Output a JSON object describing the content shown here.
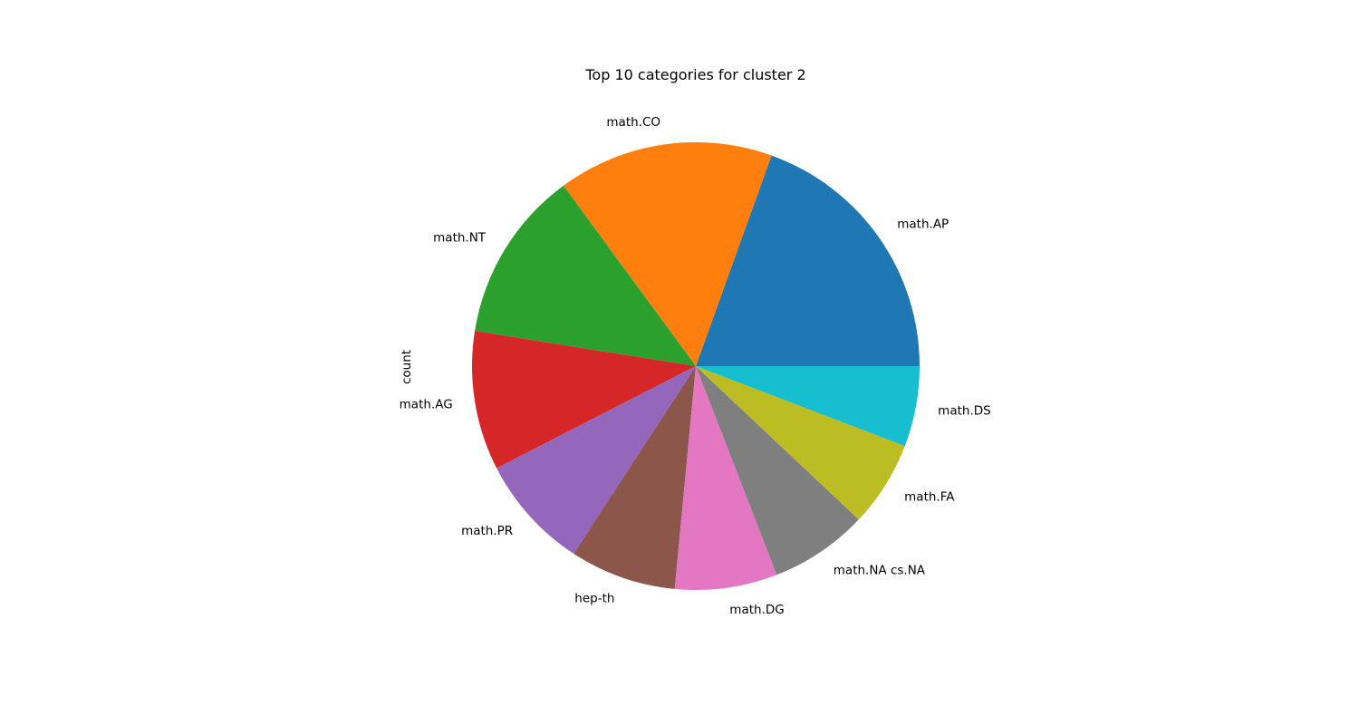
{
  "chart_data": {
    "type": "pie",
    "title": "Top 10 categories for cluster 2",
    "ylabel": "count",
    "labels": [
      "math.AP",
      "math.CO",
      "math.NT",
      "math.AG",
      "math.PR",
      "hep-th",
      "math.DG",
      "math.NA cs.NA",
      "math.FA",
      "math.DS"
    ],
    "values": [
      19.8,
      15.8,
      12.6,
      10.2,
      8.4,
      7.8,
      7.5,
      7.2,
      6.3,
      5.9
    ],
    "colors": [
      "#1f77b4",
      "#ff7f0e",
      "#2ca02c",
      "#d62728",
      "#9467bd",
      "#8c564b",
      "#e377c2",
      "#7f7f7f",
      "#bcbd22",
      "#17becf"
    ],
    "start_angle_deg": 0,
    "direction": "counterclockwise"
  }
}
